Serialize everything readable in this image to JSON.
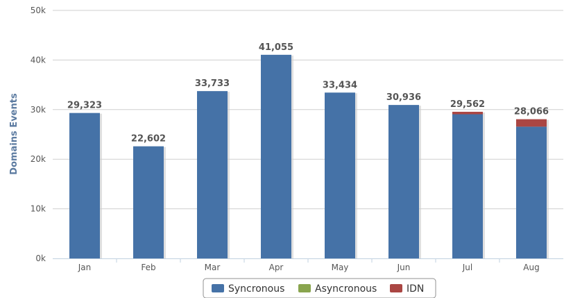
{
  "chart_data": {
    "type": "bar",
    "stacked": true,
    "categories": [
      "Jan",
      "Feb",
      "Mar",
      "Apr",
      "May",
      "Jun",
      "Jul",
      "Aug"
    ],
    "series": [
      {
        "name": "Syncronous",
        "color": "#4572a7",
        "values": [
          29323,
          22602,
          33733,
          41055,
          33434,
          30936,
          29062,
          26566
        ]
      },
      {
        "name": "Asyncronous",
        "color": "#89a54e",
        "values": [
          0,
          0,
          0,
          0,
          0,
          0,
          0,
          0
        ]
      },
      {
        "name": "IDN",
        "color": "#aa4643",
        "values": [
          0,
          0,
          0,
          0,
          0,
          0,
          500,
          1500
        ]
      }
    ],
    "data_labels": [
      "29,323",
      "22,602",
      "33,733",
      "41,055",
      "33,434",
      "30,936",
      "29,562",
      "28,066"
    ],
    "ylabel": "Domains Events",
    "xlabel": "",
    "ylim": [
      0,
      50000
    ],
    "yticks": [
      {
        "value": 0,
        "label": "0k"
      },
      {
        "value": 10000,
        "label": "10k"
      },
      {
        "value": 20000,
        "label": "20k"
      },
      {
        "value": 30000,
        "label": "30k"
      },
      {
        "value": 40000,
        "label": "40k"
      },
      {
        "value": 50000,
        "label": "50k"
      }
    ],
    "grid": true,
    "legend_position": "bottom-center"
  }
}
